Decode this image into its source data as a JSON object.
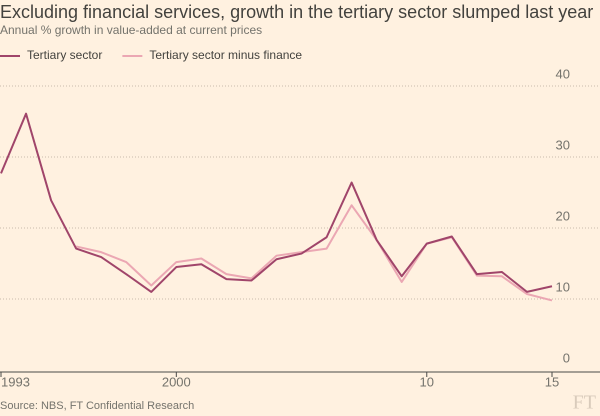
{
  "chart_data": {
    "type": "line",
    "title": "Excluding financial services, growth in the tertiary sector slumped last year",
    "subtitle": "Annual % growth in value-added at current prices",
    "source": "Source: NBS, FT Confidential Research",
    "logo": "FT",
    "x": [
      1993,
      1994,
      1995,
      1996,
      1997,
      1998,
      1999,
      2000,
      2001,
      2002,
      2003,
      2004,
      2005,
      2006,
      2007,
      2008,
      2009,
      2010,
      2011,
      2012,
      2013,
      2014,
      2015
    ],
    "series": [
      {
        "name": "Tertiary sector",
        "color": "#a0456a",
        "values": [
          27.7,
          36.1,
          23.9,
          17.1,
          15.9,
          13.5,
          11.0,
          14.5,
          14.9,
          12.8,
          12.6,
          15.6,
          16.4,
          18.7,
          26.4,
          18.3,
          13.2,
          17.8,
          18.8,
          13.5,
          13.8,
          11.0,
          11.8
        ]
      },
      {
        "name": "Tertiary sector minus finance",
        "color": "#eba7b3",
        "values": [
          null,
          null,
          null,
          17.4,
          16.6,
          15.2,
          11.9,
          15.2,
          15.7,
          13.5,
          12.9,
          16.1,
          16.6,
          17.1,
          23.2,
          18.3,
          12.4,
          17.8,
          18.7,
          13.3,
          13.2,
          10.7,
          9.8
        ]
      }
    ],
    "xlim": [
      1993,
      2015
    ],
    "xticks": [
      1993,
      2000,
      {
        "value": 2010,
        "label": "10"
      },
      {
        "value": 2015,
        "label": "15"
      }
    ],
    "ylim": [
      0,
      40
    ],
    "yticks": [
      0,
      10,
      20,
      30,
      40
    ],
    "grid": true,
    "legend": "top-left"
  }
}
